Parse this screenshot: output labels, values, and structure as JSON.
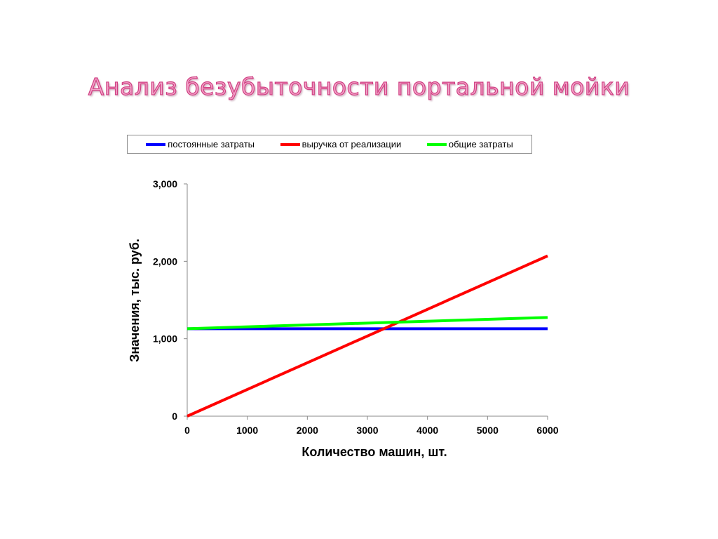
{
  "slide": {
    "title": "Анализ безубыточности портальной мойки"
  },
  "legend": {
    "items": [
      {
        "label": "постоянные затраты",
        "color": "#0000ff"
      },
      {
        "label": "выручка от реализации",
        "color": "#ff0000"
      },
      {
        "label": "общие затраты",
        "color": "#00ff00"
      }
    ]
  },
  "chart_data": {
    "type": "line",
    "title": "",
    "xlabel": "Количество машин, шт.",
    "ylabel": "Значения, тыс. руб.",
    "xlim": [
      0,
      6000
    ],
    "ylim": [
      0,
      3000
    ],
    "x_ticks": [
      "0",
      "1000",
      "2000",
      "3000",
      "4000",
      "5000",
      "6000"
    ],
    "y_ticks": [
      "0",
      "1,000",
      "2,000",
      "3,000"
    ],
    "legend_position": "top",
    "grid": false,
    "series": [
      {
        "name": "постоянные затраты",
        "color": "#0000ff",
        "x": [
          0,
          6000
        ],
        "values": [
          1130,
          1130
        ]
      },
      {
        "name": "выручка от реализации",
        "color": "#ff0000",
        "x": [
          0,
          6000
        ],
        "values": [
          0,
          2070
        ]
      },
      {
        "name": "общие затраты",
        "color": "#00ff00",
        "x": [
          0,
          6000
        ],
        "values": [
          1130,
          1275
        ]
      }
    ]
  }
}
